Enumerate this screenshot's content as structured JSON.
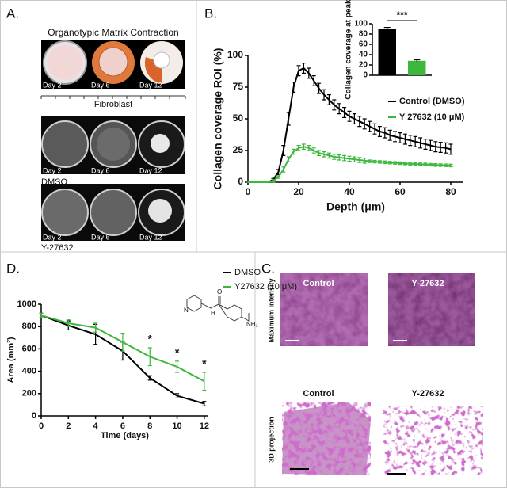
{
  "panels": {
    "a": {
      "label": "A.",
      "title": "Organotypic  Matrix Contraction",
      "days": [
        "Day 2",
        "Day 6",
        "Day 12"
      ],
      "axis_label": "Fibroblast",
      "rows": [
        "DMSO",
        "Y-27632"
      ]
    },
    "b": {
      "label": "B."
    },
    "c": {
      "label": "C.",
      "columns": [
        "Control",
        "Y-27632"
      ],
      "rows": [
        "Maximum Intensity",
        "3D projection"
      ]
    },
    "d": {
      "label": "D.",
      "structure": [
        "N",
        "H",
        "O",
        "NH₂"
      ]
    }
  },
  "chart_data": [
    {
      "type": "line",
      "xlabel": "Depth (μm)",
      "ylabel": "Collagen coverage ROI (%)",
      "x": [
        0,
        2,
        4,
        6,
        8,
        10,
        12,
        14,
        16,
        18,
        20,
        22,
        24,
        26,
        28,
        30,
        32,
        34,
        36,
        38,
        40,
        42,
        44,
        46,
        48,
        50,
        52,
        54,
        56,
        58,
        60,
        62,
        64,
        66,
        68,
        70,
        72,
        74,
        76,
        78,
        80
      ],
      "series": [
        {
          "name": "Control (DMSO)",
          "color": "#000000",
          "values": [
            0,
            0,
            0,
            0,
            0,
            2,
            8,
            25,
            50,
            75,
            88,
            90,
            86,
            80,
            74,
            69,
            65,
            61,
            58,
            55,
            52,
            50,
            48,
            46,
            44,
            42,
            40,
            39,
            37,
            36,
            35,
            34,
            33,
            32,
            31,
            30,
            29,
            28,
            27.5,
            27,
            26
          ],
          "errors": [
            0,
            0,
            0,
            0,
            0,
            1,
            2,
            4,
            5,
            4,
            4,
            4,
            4,
            4,
            4,
            4,
            4,
            4,
            4,
            4,
            4,
            4,
            4,
            4,
            4,
            4,
            4,
            4,
            4,
            4,
            4,
            4,
            4,
            4,
            4,
            4,
            4,
            4,
            4,
            4,
            4
          ]
        },
        {
          "name": "Y 27632 (10 μM)",
          "color": "#3db83d",
          "values": [
            0,
            0,
            0,
            0,
            0,
            1,
            4,
            10,
            18,
            24,
            27,
            28,
            27,
            25,
            23,
            22,
            21,
            20,
            19.5,
            19,
            18.5,
            18,
            17.5,
            17,
            16.5,
            16.2,
            16,
            15.7,
            15.4,
            15.2,
            15,
            14.7,
            14.5,
            14.3,
            14.1,
            14,
            13.8,
            13.6,
            13.5,
            13.3,
            13.2
          ],
          "errors": [
            0,
            0,
            0,
            0,
            0,
            1,
            1,
            2,
            2,
            2,
            2,
            2,
            2,
            2,
            2,
            2,
            2,
            2,
            2,
            2,
            2,
            2,
            2,
            2,
            1,
            1,
            1,
            1,
            1,
            1,
            1,
            1,
            1,
            1,
            1,
            1,
            1,
            1,
            1,
            1,
            1
          ]
        }
      ],
      "xlim": [
        0,
        85
      ],
      "xticks": [
        0,
        20,
        40,
        60,
        80
      ],
      "ylim": [
        0,
        100
      ],
      "yticks": [
        0,
        25,
        50,
        75,
        100
      ]
    },
    {
      "type": "bar",
      "ylabel": "Collagen coverage at peak",
      "categories": [
        null,
        null
      ],
      "values": [
        90,
        28
      ],
      "errors": [
        3,
        2
      ],
      "colors": [
        "#000000",
        "#3db83d"
      ],
      "ylim": [
        0,
        100
      ],
      "yticks": [
        0,
        20,
        40,
        60,
        80,
        100
      ],
      "annotation": "***"
    },
    {
      "type": "line",
      "xlabel": "Time (days)",
      "ylabel": "Area (mm²)",
      "x": [
        0,
        2,
        4,
        6,
        8,
        10,
        12
      ],
      "series": [
        {
          "name": "DMSO",
          "color": "#000000",
          "values": [
            900,
            810,
            730,
            580,
            340,
            180,
            110
          ],
          "errors": [
            20,
            40,
            90,
            80,
            20,
            20,
            20
          ]
        },
        {
          "name": "Y27632 (10 μM)",
          "color": "#3db83d",
          "values": [
            900,
            830,
            790,
            660,
            530,
            440,
            310
          ],
          "errors": [
            20,
            30,
            40,
            80,
            80,
            50,
            80
          ]
        }
      ],
      "significance": [
        {
          "x": 8,
          "label": "*"
        },
        {
          "x": 10,
          "label": "*"
        },
        {
          "x": 12,
          "label": "*"
        }
      ],
      "xlim": [
        0,
        12.3
      ],
      "xticks": [
        0,
        2,
        4,
        6,
        8,
        10,
        12
      ],
      "ylim": [
        0,
        1000
      ],
      "yticks": [
        0,
        200,
        400,
        600,
        800,
        1000
      ]
    }
  ]
}
